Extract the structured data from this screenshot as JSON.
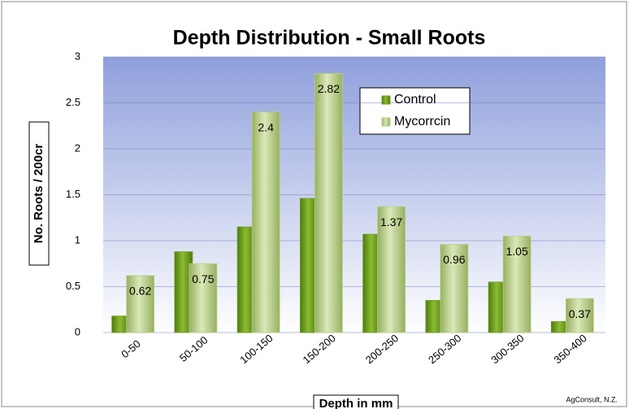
{
  "chart_data": {
    "type": "bar",
    "title": "Depth Distribution - Small Roots",
    "y_label": "No. Roots / 200cr",
    "x_label": "Depth in mm",
    "credit": "AgConsult, N.Z.",
    "categories": [
      "0-50",
      "50-100",
      "100-150",
      "150-200",
      "200-250",
      "250-300",
      "300-350",
      "350-400"
    ],
    "series": [
      {
        "name": "Control",
        "color": "#6e9e22",
        "values": [
          0.18,
          0.88,
          1.15,
          1.46,
          1.07,
          0.35,
          0.55,
          0.12
        ]
      },
      {
        "name": "Mycorrcin",
        "color": "#b8cf86",
        "values": [
          0.62,
          0.75,
          2.4,
          2.82,
          1.37,
          0.96,
          1.05,
          0.37
        ],
        "labels": true
      }
    ],
    "ylim": [
      0,
      3
    ],
    "yticks": [
      0,
      0.5,
      1,
      1.5,
      2,
      2.5,
      3
    ],
    "legend": "upper right"
  }
}
